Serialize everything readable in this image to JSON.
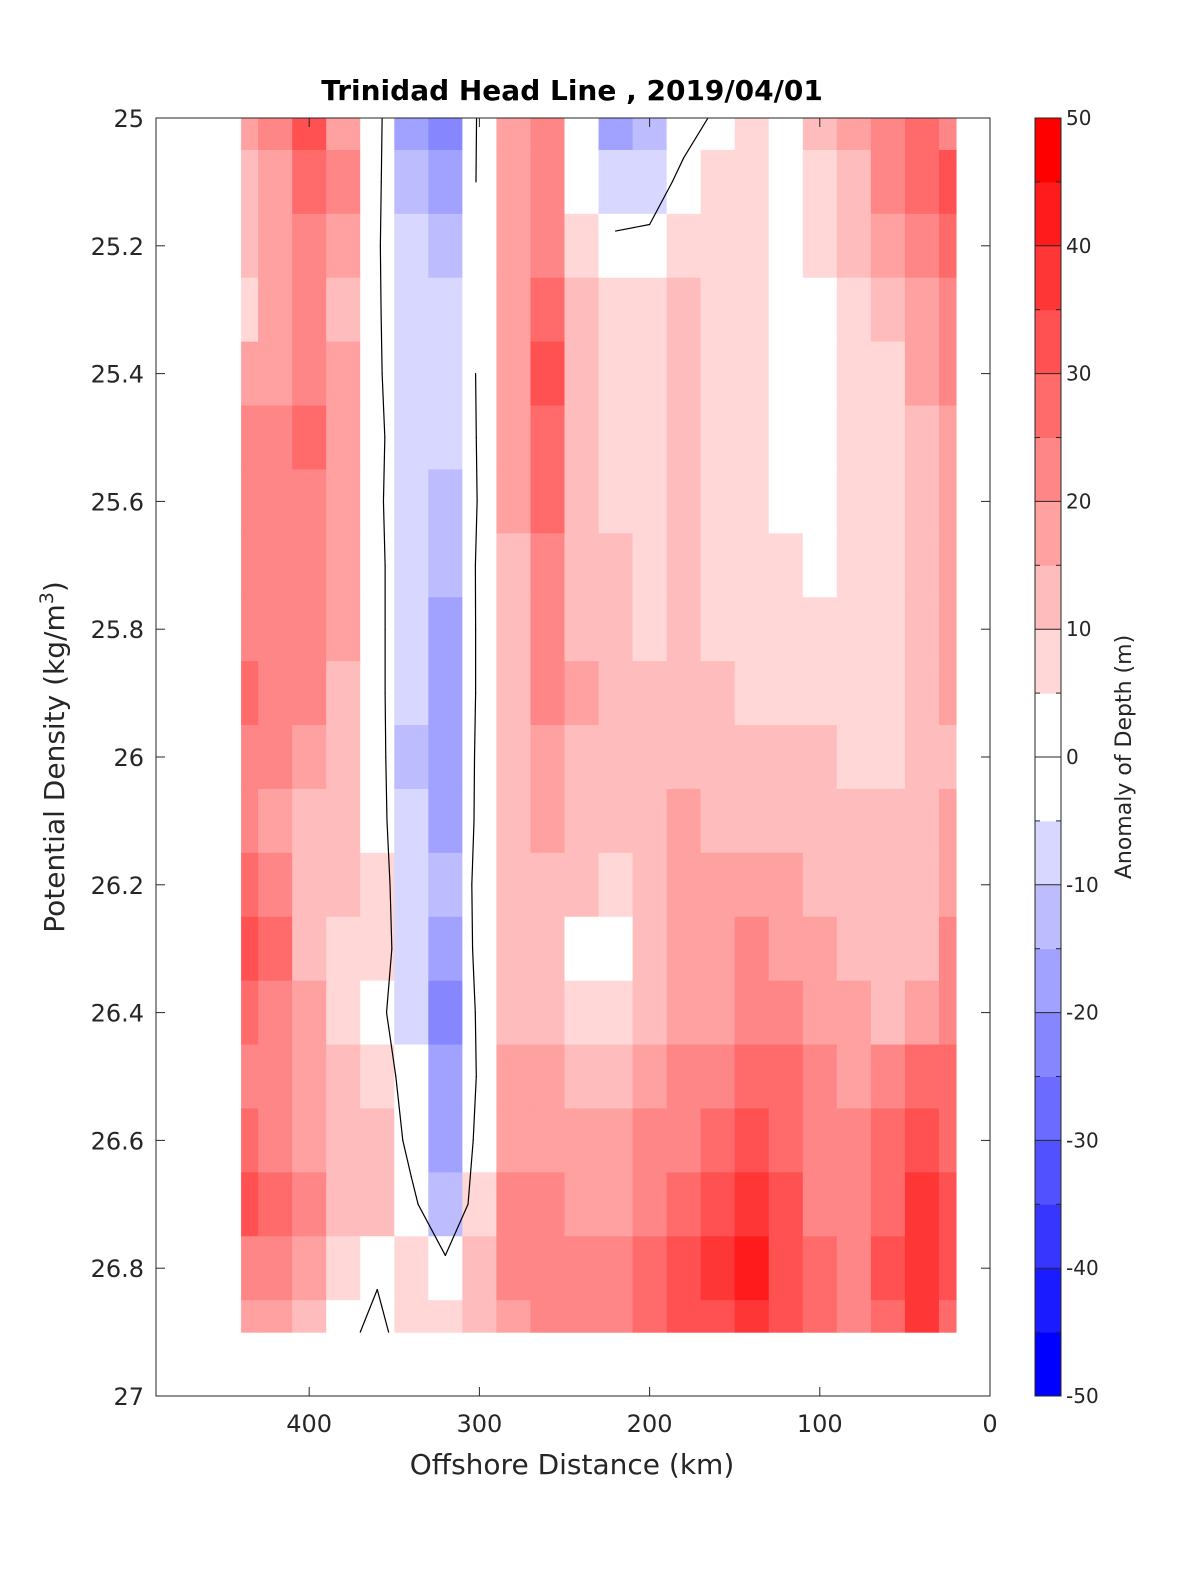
{
  "chart_data": {
    "type": "heatmap",
    "title": "Trinidad Head Line , 2019/04/01",
    "xlabel": "Offshore Distance (km)",
    "ylabel": "Potential Density (kg/m",
    "ylabel_superscript": "3",
    "ylabel_suffix": ")",
    "xlim": [
      490,
      0
    ],
    "x_reversed": true,
    "ylim": [
      25,
      27
    ],
    "y_reversed": true,
    "x_ticks": [
      400,
      300,
      200,
      100,
      0
    ],
    "y_ticks": [
      25,
      25.2,
      25.4,
      25.6,
      25.8,
      26,
      26.2,
      26.4,
      26.6,
      26.8,
      27
    ],
    "grid": false,
    "data_extent": {
      "x": [
        440,
        20
      ],
      "y": [
        25,
        26.9
      ]
    },
    "colorbar": {
      "label": "Anomaly of Depth (m)",
      "range": [
        -50,
        50
      ],
      "ticks": [
        50,
        40,
        30,
        20,
        10,
        0,
        -10,
        -20,
        -30,
        -40,
        -50
      ],
      "levels": [
        -50,
        -45,
        -40,
        -35,
        -30,
        -25,
        -20,
        -15,
        -10,
        -5,
        5,
        10,
        15,
        20,
        25,
        30,
        35,
        40,
        45,
        50
      ],
      "negative_color": "#0000ff",
      "positive_color": "#ff0000",
      "zero_color": "#ffffff"
    },
    "x_grid": [
      440,
      420,
      400,
      380,
      360,
      340,
      320,
      300,
      280,
      260,
      240,
      220,
      200,
      180,
      160,
      140,
      120,
      100,
      80,
      60,
      40,
      20
    ],
    "y_grid": [
      25.0,
      25.1,
      25.2,
      25.3,
      25.4,
      25.5,
      25.6,
      25.7,
      25.8,
      25.9,
      26.0,
      26.1,
      26.2,
      26.3,
      26.4,
      26.5,
      26.6,
      26.7,
      26.8,
      26.9
    ],
    "z": [
      [
        18,
        22,
        30,
        18,
        3,
        -18,
        -22,
        2,
        18,
        20,
        -3,
        -18,
        -15,
        -5,
        2,
        8,
        2,
        10,
        15,
        22,
        28,
        22
      ],
      [
        12,
        18,
        28,
        20,
        2,
        -15,
        -18,
        2,
        16,
        22,
        0,
        -10,
        -6,
        3,
        6,
        8,
        2,
        8,
        12,
        20,
        28,
        30
      ],
      [
        10,
        16,
        22,
        16,
        1,
        -10,
        -12,
        0,
        15,
        20,
        5,
        3,
        3,
        8,
        6,
        8,
        0,
        5,
        10,
        16,
        20,
        26
      ],
      [
        8,
        15,
        20,
        14,
        1,
        -8,
        -9,
        0,
        15,
        28,
        10,
        5,
        5,
        10,
        6,
        8,
        0,
        2,
        8,
        12,
        18,
        22
      ],
      [
        16,
        18,
        22,
        15,
        1,
        -6,
        -8,
        1,
        15,
        30,
        12,
        8,
        5,
        12,
        8,
        8,
        2,
        2,
        6,
        8,
        16,
        20
      ],
      [
        20,
        22,
        26,
        18,
        2,
        -7,
        -10,
        1,
        16,
        28,
        12,
        8,
        8,
        12,
        8,
        8,
        3,
        3,
        5,
        6,
        14,
        18
      ],
      [
        20,
        22,
        24,
        18,
        2,
        -9,
        -14,
        1,
        15,
        25,
        12,
        8,
        8,
        12,
        8,
        8,
        4,
        3,
        5,
        5,
        10,
        16
      ],
      [
        20,
        20,
        22,
        16,
        3,
        -10,
        -15,
        2,
        14,
        22,
        14,
        10,
        8,
        12,
        8,
        8,
        6,
        4,
        6,
        6,
        10,
        16
      ],
      [
        24,
        20,
        20,
        15,
        3,
        -10,
        -16,
        2,
        14,
        20,
        14,
        10,
        8,
        14,
        8,
        5,
        6,
        6,
        6,
        6,
        10,
        16
      ],
      [
        28,
        22,
        20,
        14,
        3,
        -10,
        -16,
        2,
        12,
        20,
        15,
        10,
        10,
        14,
        12,
        8,
        8,
        8,
        6,
        8,
        10,
        16
      ],
      [
        24,
        22,
        18,
        14,
        4,
        -12,
        -18,
        3,
        12,
        18,
        14,
        10,
        10,
        14,
        12,
        10,
        10,
        10,
        8,
        8,
        10,
        14
      ],
      [
        20,
        18,
        14,
        10,
        4,
        -10,
        -16,
        3,
        12,
        16,
        14,
        12,
        14,
        15,
        14,
        12,
        12,
        12,
        10,
        10,
        12,
        16
      ],
      [
        25,
        20,
        12,
        10,
        6,
        -10,
        -14,
        4,
        12,
        14,
        10,
        8,
        14,
        16,
        15,
        15,
        15,
        14,
        12,
        10,
        12,
        18
      ],
      [
        32,
        28,
        14,
        8,
        6,
        -8,
        -16,
        4,
        12,
        12,
        3,
        3,
        14,
        16,
        16,
        20,
        18,
        15,
        14,
        12,
        14,
        20
      ],
      [
        28,
        24,
        16,
        8,
        3,
        -8,
        -22,
        3,
        14,
        14,
        8,
        6,
        14,
        16,
        18,
        24,
        22,
        18,
        15,
        14,
        16,
        22
      ],
      [
        24,
        20,
        18,
        12,
        6,
        -5,
        -20,
        2,
        16,
        16,
        14,
        12,
        16,
        20,
        22,
        28,
        26,
        20,
        18,
        22,
        28,
        25
      ],
      [
        28,
        24,
        18,
        14,
        12,
        -4,
        -18,
        4,
        18,
        18,
        16,
        16,
        20,
        24,
        28,
        32,
        28,
        22,
        20,
        26,
        34,
        28
      ],
      [
        30,
        25,
        20,
        14,
        10,
        3,
        -12,
        6,
        20,
        24,
        18,
        18,
        22,
        28,
        34,
        38,
        30,
        24,
        22,
        28,
        36,
        30
      ],
      [
        24,
        22,
        18,
        8,
        2,
        6,
        3,
        10,
        20,
        22,
        20,
        22,
        28,
        34,
        36,
        40,
        32,
        26,
        24,
        30,
        38,
        30
      ],
      [
        18,
        16,
        12,
        4,
        -4,
        8,
        8,
        12,
        18,
        20,
        20,
        24,
        28,
        32,
        34,
        38,
        30,
        28,
        22,
        28,
        36,
        28
      ]
    ],
    "contour_level": 0
  }
}
